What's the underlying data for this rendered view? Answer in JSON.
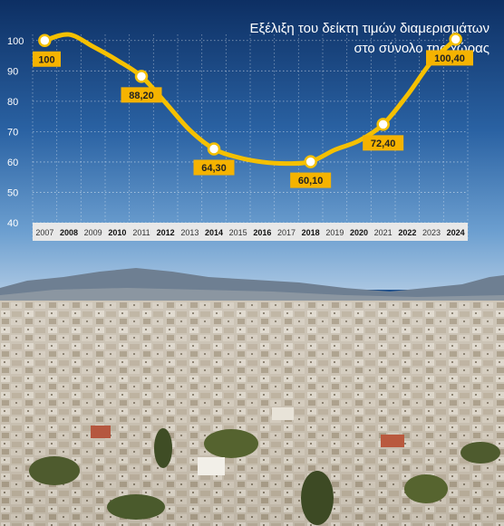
{
  "chart_data": {
    "type": "line",
    "title_lines": [
      "Εξέλιξη του δείκτη τιμών διαμερισμάτων",
      "στο σύνολο της χώρας"
    ],
    "x": [
      "2007",
      "2008",
      "2009",
      "2010",
      "2011",
      "2012",
      "2013",
      "2014",
      "2015",
      "2016",
      "2017",
      "2018",
      "2019",
      "2020",
      "2021",
      "2022",
      "2023",
      "2024"
    ],
    "bold_years": [
      "2008",
      "2010",
      "2012",
      "2014",
      "2016",
      "2018",
      "2020",
      "2022",
      "2024"
    ],
    "series": [
      {
        "values": [
          100,
          102,
          98,
          93.5,
          88.2,
          79.5,
          70.5,
          64.3,
          61.5,
          60,
          59.5,
          60.1,
          64,
          67,
          72.4,
          82,
          93,
          100.4
        ],
        "color": "#f5c000"
      }
    ],
    "labeled_points": [
      {
        "x": "2007",
        "label": "100",
        "position": "below"
      },
      {
        "x": "2011",
        "label": "88,20",
        "position": "below"
      },
      {
        "x": "2014",
        "label": "64,30",
        "position": "below"
      },
      {
        "x": "2018",
        "label": "60,10",
        "position": "below"
      },
      {
        "x": "2021",
        "label": "72,40",
        "position": "below"
      },
      {
        "x": "2024",
        "label": "100,40",
        "position": "below"
      }
    ],
    "yticks": [
      40,
      50,
      60,
      70,
      80,
      90,
      100
    ],
    "ylim": [
      40,
      105
    ],
    "grid": true,
    "colors": {
      "background_top": "#0d2f63",
      "background_bottom": "#5f93c8",
      "line": "#f5c000",
      "label_box": "#f5b300",
      "axis_strip": "#e8e8e8"
    }
  }
}
